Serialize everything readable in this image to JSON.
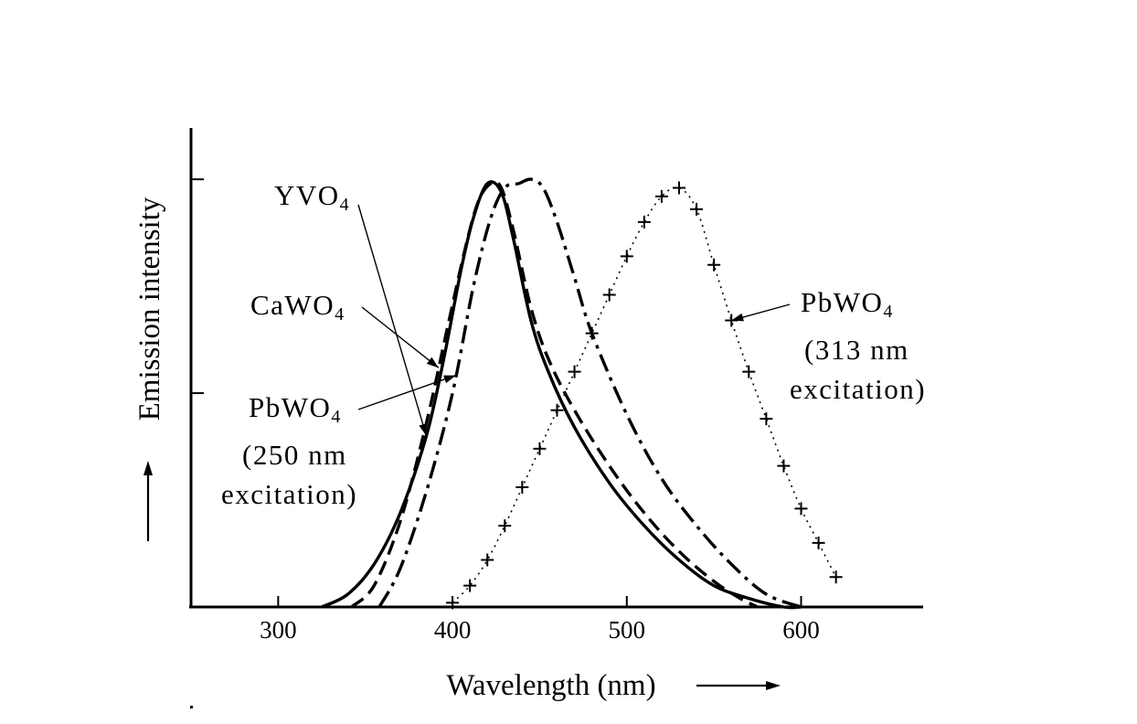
{
  "chart_data": {
    "type": "line",
    "xlabel": "Wavelength (nm)",
    "ylabel": "Emission intensity",
    "xlim": [
      250,
      670
    ],
    "ylim": [
      0,
      1.12
    ],
    "x_ticks": [
      300,
      400,
      500,
      600
    ],
    "x_tick_labels": [
      "300",
      "400",
      "500",
      "600"
    ],
    "y_ticks": [
      0.5,
      1.0
    ],
    "grid": false,
    "series": [
      {
        "name": "YVO4",
        "style": "solid",
        "x": [
          325,
          340,
          355,
          370,
          385,
          395,
          405,
          412,
          420,
          428,
          435,
          445,
          455,
          470,
          490,
          510,
          530,
          550,
          570,
          590,
          600
        ],
        "y": [
          0.0,
          0.03,
          0.1,
          0.22,
          0.4,
          0.58,
          0.79,
          0.91,
          0.99,
          0.97,
          0.86,
          0.67,
          0.55,
          0.42,
          0.29,
          0.19,
          0.11,
          0.05,
          0.02,
          0.0,
          0.0
        ]
      },
      {
        "name": "CaWO4",
        "style": "dashed",
        "x": [
          342,
          355,
          370,
          385,
          398,
          408,
          415,
          422,
          428,
          435,
          445,
          455,
          470,
          490,
          510,
          530,
          550,
          565,
          575
        ],
        "y": [
          0.0,
          0.05,
          0.2,
          0.43,
          0.67,
          0.85,
          0.95,
          0.99,
          0.98,
          0.88,
          0.7,
          0.58,
          0.46,
          0.33,
          0.22,
          0.13,
          0.06,
          0.02,
          0.0
        ]
      },
      {
        "name": "PbWO4 (250nm excitation)",
        "style": "dashdot",
        "x": [
          358,
          370,
          385,
          400,
          412,
          422,
          430,
          438,
          445,
          452,
          460,
          470,
          480,
          500,
          520,
          540,
          560,
          580,
          600
        ],
        "y": [
          0.0,
          0.09,
          0.27,
          0.5,
          0.75,
          0.91,
          0.98,
          0.99,
          1.0,
          0.98,
          0.9,
          0.77,
          0.64,
          0.45,
          0.3,
          0.19,
          0.1,
          0.03,
          0.0
        ]
      },
      {
        "name": "PbWO4 (313nm excitation)",
        "style": "plus-markers",
        "x": [
          400,
          410,
          420,
          430,
          440,
          450,
          460,
          470,
          480,
          490,
          500,
          510,
          520,
          530,
          540,
          550,
          560,
          570,
          580,
          590,
          600,
          610,
          620
        ],
        "y": [
          0.01,
          0.05,
          0.11,
          0.19,
          0.28,
          0.37,
          0.46,
          0.55,
          0.64,
          0.73,
          0.82,
          0.9,
          0.96,
          0.98,
          0.93,
          0.8,
          0.67,
          0.55,
          0.44,
          0.33,
          0.23,
          0.15,
          0.07
        ]
      }
    ],
    "annotations": [
      {
        "id": "yvo4",
        "text": "YVO",
        "sub": "4",
        "target_series": "YVO4",
        "target_x": 385
      },
      {
        "id": "cawo4",
        "text": "CaWO",
        "sub": "4",
        "target_series": "CaWO4",
        "target_x": 392
      },
      {
        "id": "pbwo4_250",
        "text": "PbWO",
        "sub": "4",
        "line2": "(250 nm",
        "line3": "excitation)",
        "target_series": "PbWO4 (250nm excitation)",
        "target_x": 402
      },
      {
        "id": "pbwo4_313",
        "text": "PbWO",
        "sub": "4",
        "line2": "(313 nm",
        "line3": "excitation)",
        "target_series": "PbWO4 (313nm excitation)",
        "target_x": 560
      }
    ]
  }
}
